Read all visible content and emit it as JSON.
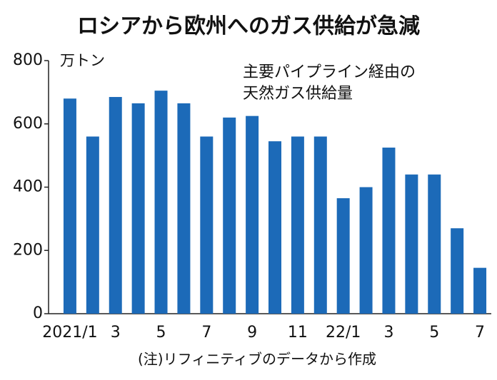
{
  "chart_data": {
    "type": "bar",
    "title": "ロシアから欧州へのガス供給が急減",
    "y_unit": "万トン",
    "annotation": [
      "主要パイプライン経由の",
      "天然ガス供給量"
    ],
    "note": "(注)リフィニティブのデータから作成",
    "categories": [
      "2021/1",
      null,
      "3",
      null,
      "5",
      null,
      "7",
      null,
      "9",
      null,
      "11",
      null,
      "22/1",
      null,
      "3",
      null,
      "5",
      null,
      "7"
    ],
    "values": [
      680,
      560,
      685,
      665,
      705,
      665,
      560,
      620,
      625,
      545,
      560,
      560,
      365,
      400,
      525,
      440,
      440,
      270,
      145
    ],
    "color": "#1c6ab8",
    "ylim": [
      0,
      800
    ],
    "yticks": [
      0,
      200,
      400,
      600,
      800
    ],
    "grid": false
  }
}
